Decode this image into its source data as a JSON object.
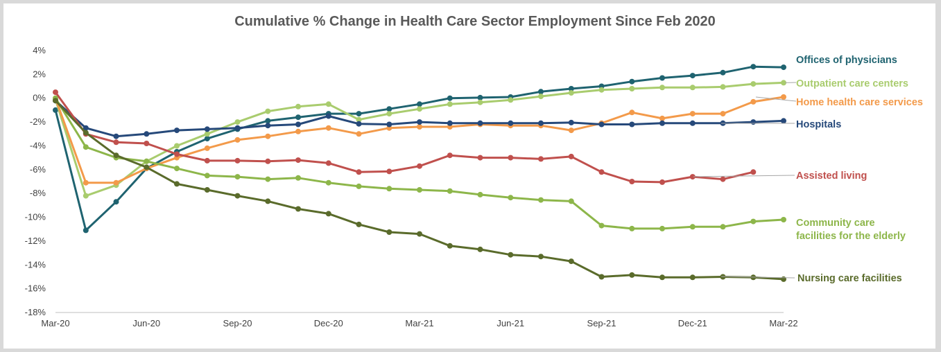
{
  "chart_data": {
    "type": "line",
    "title": "Cumulative % Change in Health Care Sector Employment Since Feb 2020",
    "x": [
      "Mar-20",
      "Apr-20",
      "May-20",
      "Jun-20",
      "Jul-20",
      "Aug-20",
      "Sep-20",
      "Oct-20",
      "Nov-20",
      "Dec-20",
      "Jan-21",
      "Feb-21",
      "Mar-21",
      "Apr-21",
      "May-21",
      "Jun-21",
      "Jul-21",
      "Aug-21",
      "Sep-21",
      "Oct-21",
      "Nov-21",
      "Dec-21",
      "Jan-22",
      "Feb-22",
      "Mar-22"
    ],
    "x_tick_labels": [
      "Mar-20",
      "Jun-20",
      "Sep-20",
      "Dec-20",
      "Mar-21",
      "Jun-21",
      "Sep-21",
      "Dec-21",
      "Mar-22"
    ],
    "y_tick_labels": [
      "4%",
      "2%",
      "0%",
      "-2%",
      "-4%",
      "-6%",
      "-8%",
      "-10%",
      "-12%",
      "-14%",
      "-16%",
      "-18%"
    ],
    "ylim": [
      -18,
      4
    ],
    "grid": false,
    "legend": "direct labels at right",
    "series": [
      {
        "name": "Offices of physicians",
        "color": "#1f6370",
        "values": [
          -1.0,
          -11.1,
          -8.7,
          -5.9,
          -4.5,
          -3.4,
          -2.6,
          -1.9,
          -1.6,
          -1.3,
          -1.3,
          -0.9,
          -0.5,
          0.0,
          0.05,
          0.1,
          0.55,
          0.8,
          1.0,
          1.4,
          1.7,
          1.9,
          2.15,
          2.65,
          2.6
        ]
      },
      {
        "name": "Outpatient care centers",
        "color": "#a9cc6e",
        "values": [
          -0.1,
          -8.2,
          -7.3,
          -5.3,
          -4.0,
          -3.0,
          -2.0,
          -1.1,
          -0.7,
          -0.5,
          -1.8,
          -1.3,
          -0.9,
          -0.5,
          -0.35,
          -0.15,
          0.15,
          0.45,
          0.7,
          0.8,
          0.9,
          0.9,
          0.95,
          1.2,
          1.3
        ]
      },
      {
        "name": "Home health care services",
        "color": "#f39a4a",
        "values": [
          0.0,
          -7.1,
          -7.1,
          -5.9,
          -5.0,
          -4.2,
          -3.5,
          -3.2,
          -2.8,
          -2.5,
          -3.0,
          -2.5,
          -2.4,
          -2.4,
          -2.2,
          -2.3,
          -2.3,
          -2.7,
          -2.1,
          -1.2,
          -1.7,
          -1.3,
          -1.3,
          -0.3,
          0.1
        ]
      },
      {
        "name": "Hospitals",
        "color": "#26497a",
        "values": [
          -0.2,
          -2.5,
          -3.2,
          -3.0,
          -2.7,
          -2.6,
          -2.5,
          -2.3,
          -2.2,
          -1.5,
          -2.15,
          -2.2,
          -2.0,
          -2.1,
          -2.1,
          -2.1,
          -2.1,
          -2.05,
          -2.2,
          -2.2,
          -2.1,
          -2.1,
          -2.1,
          -2.0,
          -1.9
        ]
      },
      {
        "name": "Assisted living",
        "color": "#c0504d",
        "values": [
          0.5,
          -3.0,
          -3.7,
          -3.8,
          -4.7,
          -5.25,
          -5.25,
          -5.3,
          -5.2,
          -5.45,
          -6.2,
          -6.15,
          -5.7,
          -4.8,
          -5.0,
          -5.0,
          -5.1,
          -4.9,
          -6.2,
          -7.0,
          -7.05,
          -6.6,
          -6.8,
          -6.2,
          null
        ]
      },
      {
        "name": "Community care\nfacilities for the elderly",
        "color": "#8db64a",
        "values": [
          0.0,
          -4.1,
          -5.0,
          -5.3,
          -5.9,
          -6.5,
          -6.6,
          -6.8,
          -6.7,
          -7.1,
          -7.4,
          -7.6,
          -7.7,
          -7.8,
          -8.1,
          -8.35,
          -8.55,
          -8.65,
          -10.7,
          -10.95,
          -10.95,
          -10.8,
          -10.8,
          -10.35,
          -10.2
        ]
      },
      {
        "name": "Nursing care facilities",
        "color": "#5a6b2b",
        "values": [
          -0.2,
          -2.9,
          -4.8,
          -5.8,
          -7.2,
          -7.7,
          -8.2,
          -8.65,
          -9.3,
          -9.7,
          -10.6,
          -11.25,
          -11.4,
          -12.4,
          -12.7,
          -13.15,
          -13.3,
          -13.7,
          -15.0,
          -14.85,
          -15.05,
          -15.05,
          -15.0,
          -15.05,
          -15.2
        ]
      }
    ]
  }
}
